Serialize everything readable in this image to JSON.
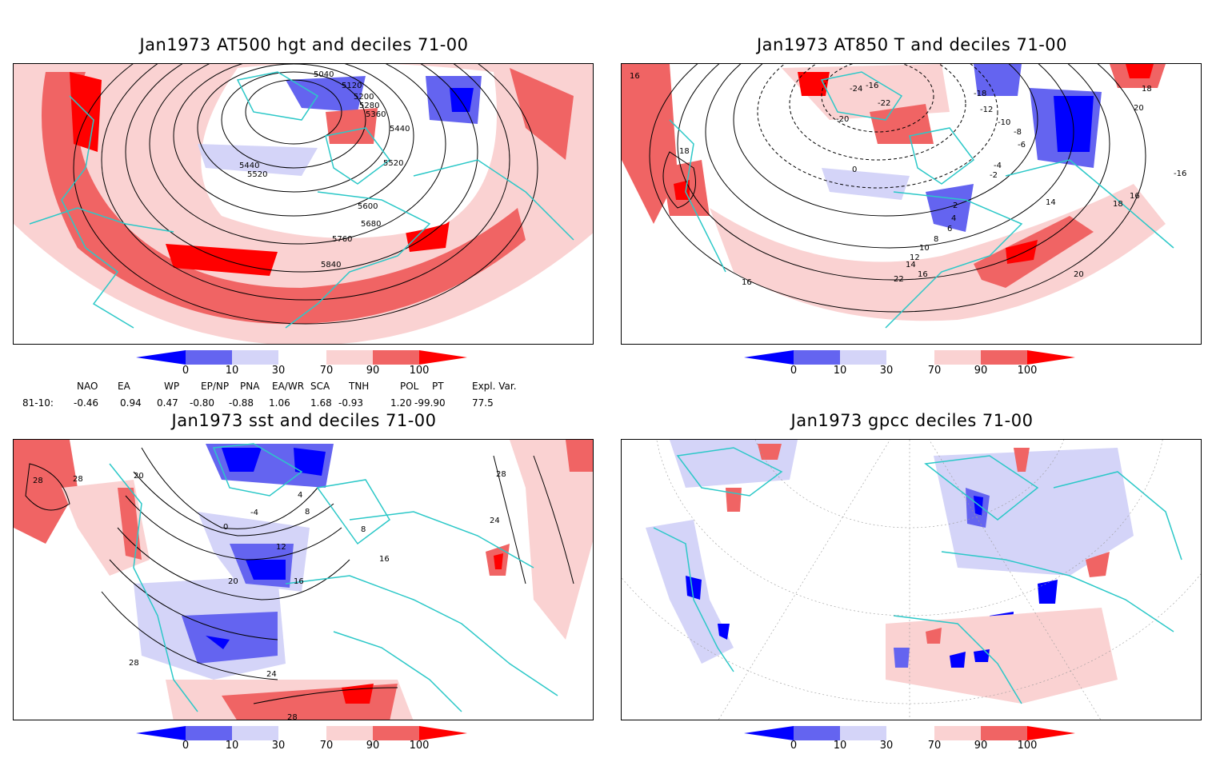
{
  "panels": [
    {
      "title": "Jan1973 AT500 hgt and deciles 71-00",
      "contour_labels": [
        "5040",
        "5120",
        "5200",
        "5280",
        "5360",
        "5440",
        "5440",
        "5520",
        "5520",
        "5600",
        "5680",
        "5760",
        "5840"
      ]
    },
    {
      "title": "Jan1973 AT850 T and deciles 71-00",
      "contour_labels": [
        "16",
        "18",
        "-24",
        "-16",
        "-18",
        "-20",
        "-22",
        "-12",
        "-10",
        "-8",
        "-6",
        "-4",
        "-2",
        "0",
        "2",
        "4",
        "6",
        "8",
        "10",
        "12",
        "14",
        "16",
        "18",
        "20",
        "22",
        "14",
        "16",
        "-16",
        "20",
        "18",
        "16"
      ]
    },
    {
      "title": "Jan1973 sst and deciles 71-00",
      "contour_labels": [
        "28",
        "28",
        "20",
        "0",
        "-4",
        "4",
        "8",
        "12",
        "16",
        "20",
        "24",
        "28",
        "28",
        "24",
        "16",
        "8",
        "28"
      ]
    },
    {
      "title": "Jan1973 gpcc deciles 71-00",
      "contour_labels": []
    }
  ],
  "colorbar": {
    "ticks": [
      "0",
      "10",
      "30",
      "70",
      "90",
      "100"
    ],
    "colors": [
      "#0000ff",
      "#6464f0",
      "#d4d4f8",
      "#ffffff",
      "#fad2d2",
      "#f06464",
      "#ff0000"
    ]
  },
  "indices": {
    "headers": [
      "NAO",
      "EA",
      "WP",
      "EP/NP",
      "PNA",
      "EA/WR",
      "SCA",
      "TNH",
      "POL",
      "PT",
      "Expl. Var."
    ],
    "row_label": "81-10:",
    "values": [
      "-0.46",
      "0.94",
      "0.47",
      "-0.80",
      "-0.88",
      "1.06",
      "1.68",
      "-0.93",
      "1.20",
      "-99.90",
      "77.5"
    ]
  },
  "colors": {
    "coast": "#2cc8c8",
    "frame": "#000000",
    "warm": "#f06464",
    "cool": "#6464f0"
  }
}
